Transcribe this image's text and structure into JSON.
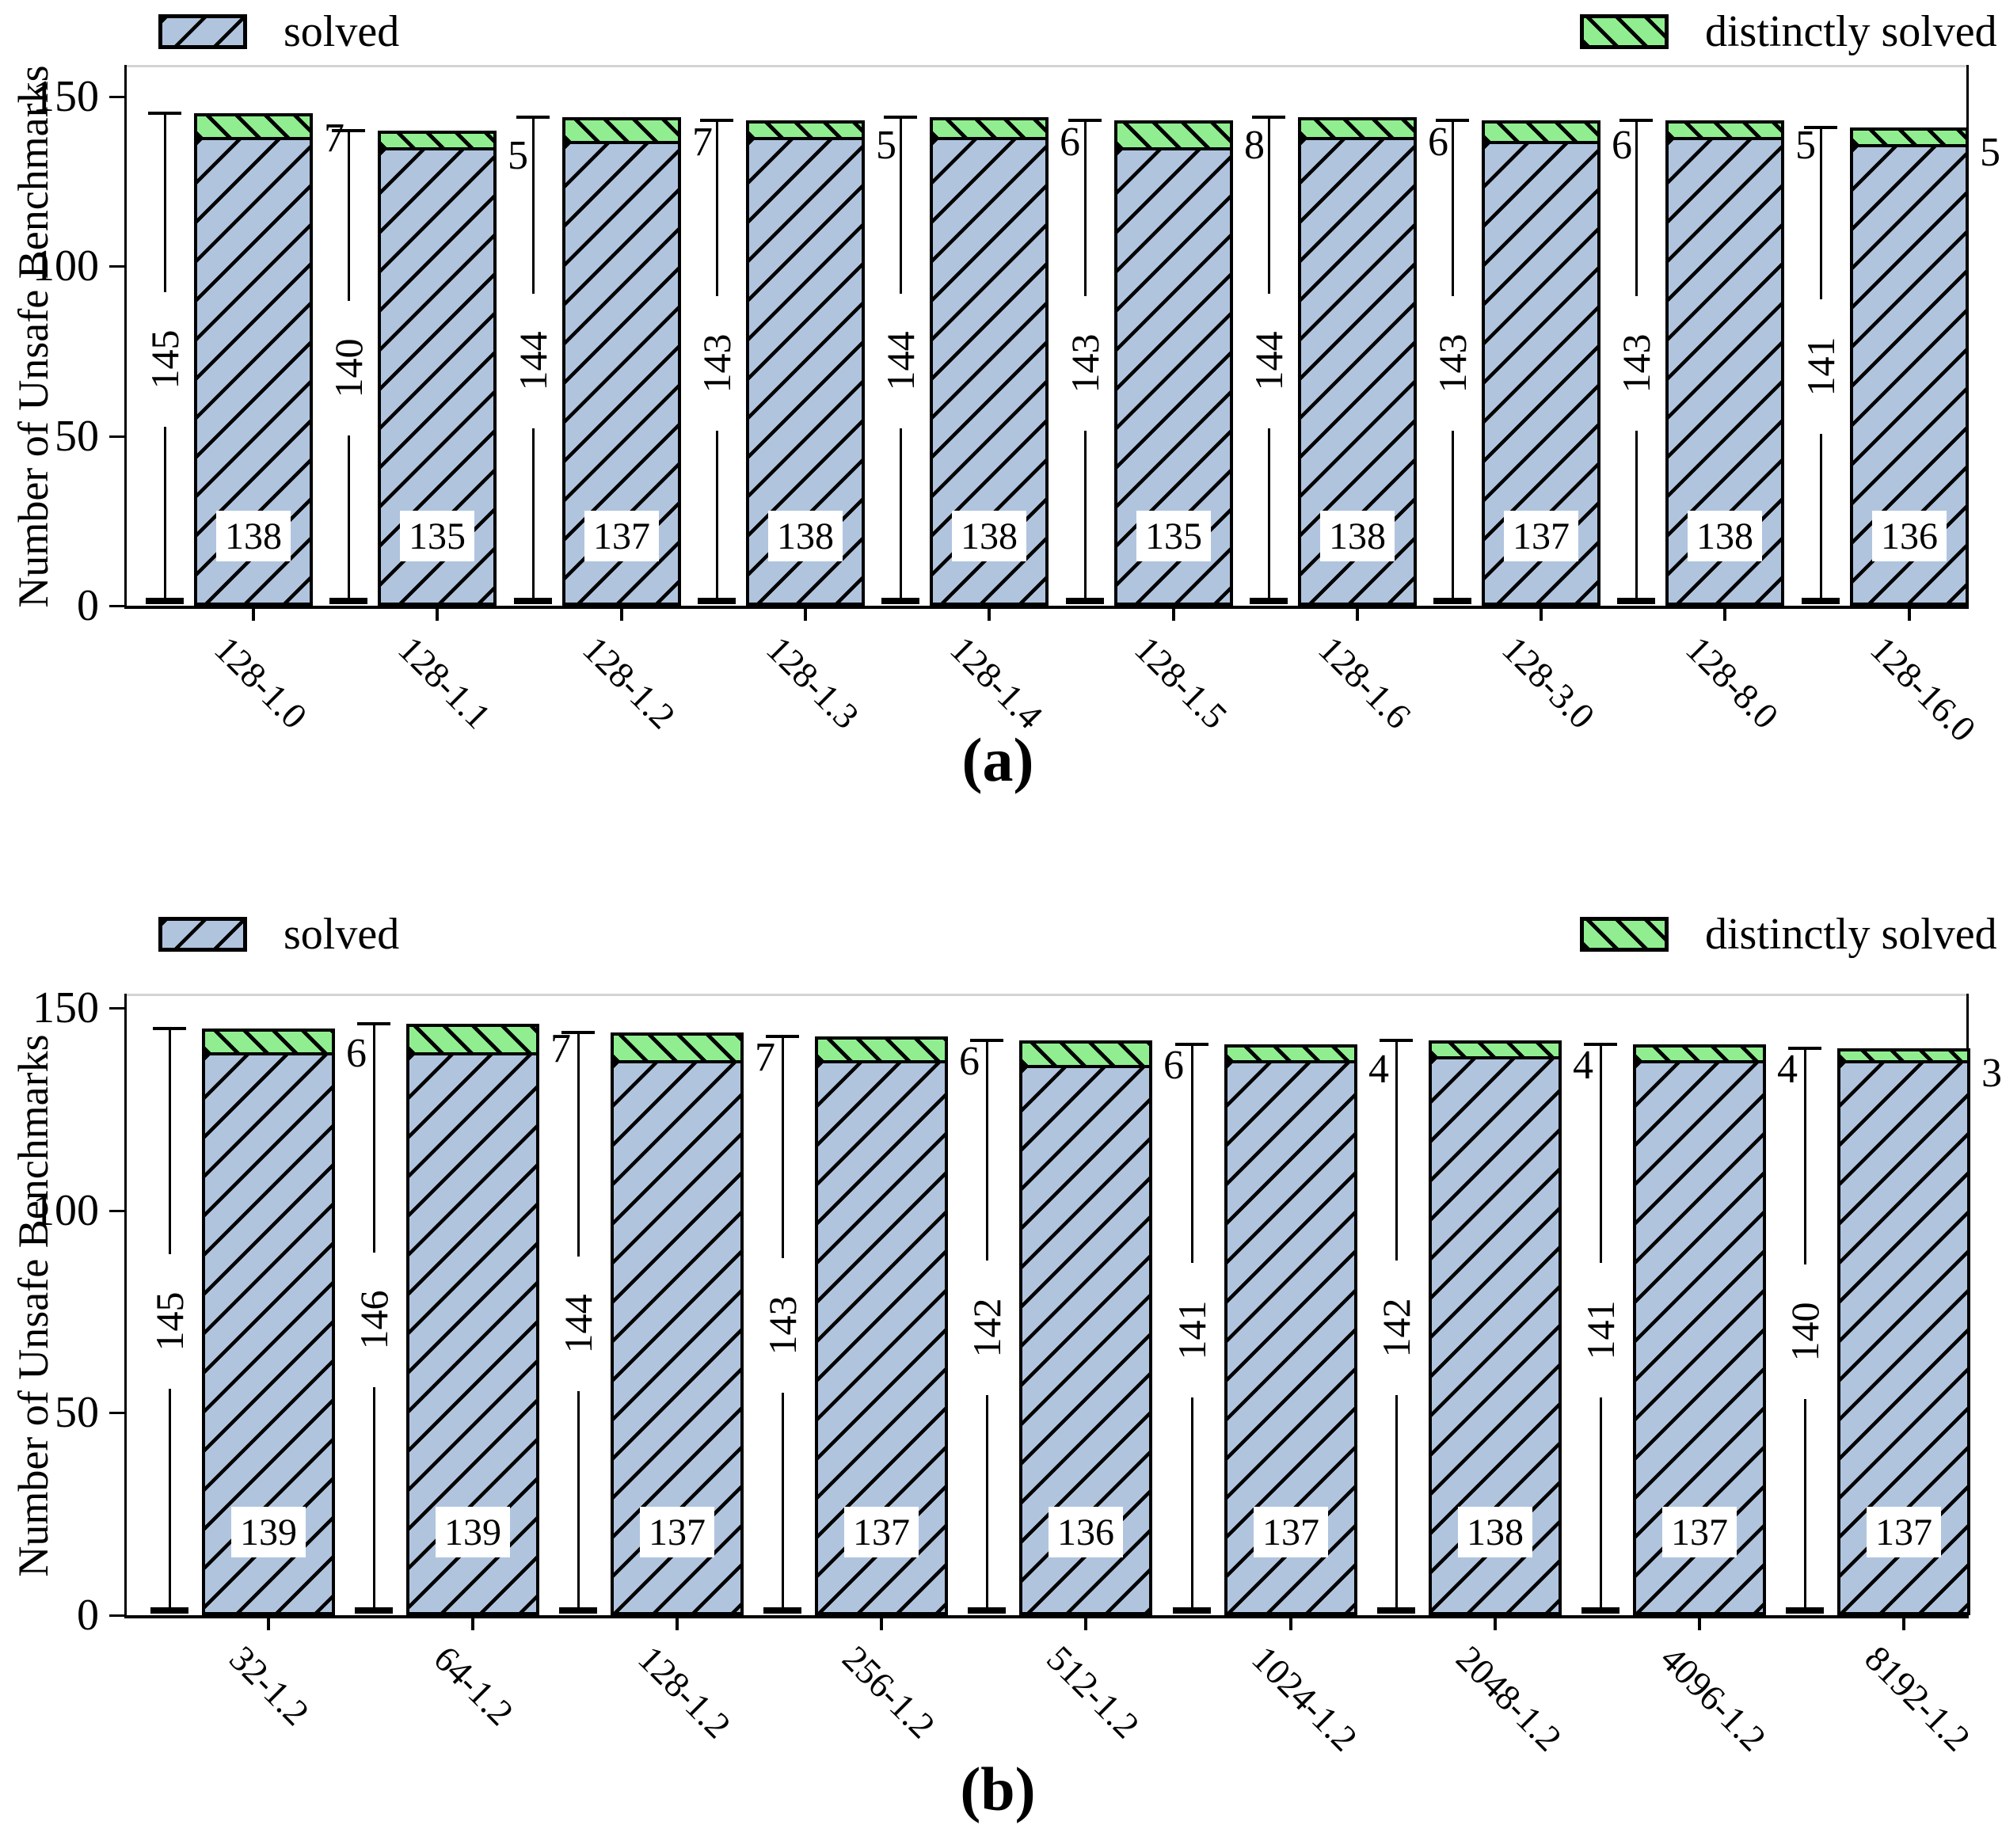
{
  "colors": {
    "solved_fill": "#b0c4de",
    "distinctly_solved_fill": "#90ee90",
    "hatch": "#000000",
    "top_spine": "#d3d3d3"
  },
  "chart_data": [
    {
      "type": "bar",
      "stacked": true,
      "caption": "(a)",
      "ylabel": "Number of Unsafe Benchmarks",
      "yticks": [
        0,
        50,
        100,
        150
      ],
      "ylim": [
        0,
        158
      ],
      "grid": false,
      "legend": [
        {
          "label": "solved",
          "position": "top-left",
          "hatch": "/"
        },
        {
          "label": "distinctly solved",
          "position": "top-right",
          "hatch": "\\"
        }
      ],
      "categories": [
        "128-1.0",
        "128-1.1",
        "128-1.2",
        "128-1.3",
        "128-1.4",
        "128-1.5",
        "128-1.6",
        "128-3.0",
        "128-8.0",
        "128-16.0"
      ],
      "series": [
        {
          "name": "solved",
          "values": [
            138,
            135,
            137,
            138,
            138,
            135,
            138,
            137,
            138,
            136
          ]
        },
        {
          "name": "distinctly solved",
          "values": [
            7,
            5,
            7,
            5,
            6,
            8,
            6,
            6,
            5,
            5
          ]
        }
      ],
      "totals": [
        145,
        140,
        144,
        143,
        144,
        143,
        144,
        143,
        143,
        141
      ]
    },
    {
      "type": "bar",
      "stacked": true,
      "caption": "(b)",
      "ylabel": "Number of Unsafe Benchmarks",
      "yticks": [
        0,
        50,
        100,
        150
      ],
      "ylim": [
        0,
        153
      ],
      "grid": false,
      "legend": [
        {
          "label": "solved",
          "position": "top-left",
          "hatch": "/"
        },
        {
          "label": "distinctly solved",
          "position": "top-right",
          "hatch": "\\"
        }
      ],
      "categories": [
        "32-1.2",
        "64-1.2",
        "128-1.2",
        "256-1.2",
        "512-1.2",
        "1024-1.2",
        "2048-1.2",
        "4096-1.2",
        "8192-1.2"
      ],
      "series": [
        {
          "name": "solved",
          "values": [
            139,
            139,
            137,
            137,
            136,
            137,
            138,
            137,
            137
          ]
        },
        {
          "name": "distinctly solved",
          "values": [
            6,
            7,
            7,
            6,
            6,
            4,
            4,
            4,
            3
          ]
        }
      ],
      "totals": [
        145,
        146,
        144,
        143,
        142,
        141,
        142,
        141,
        140
      ]
    }
  ]
}
